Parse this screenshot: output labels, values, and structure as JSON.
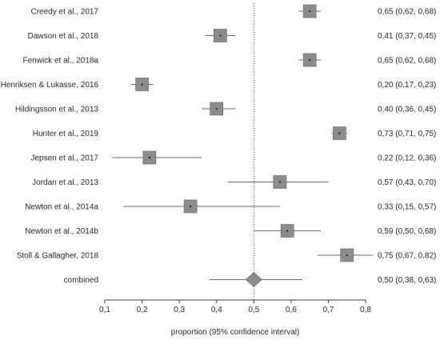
{
  "chart_data": {
    "type": "forest",
    "title": "",
    "xlabel": "proportion (95% confidence interval)",
    "ylabel": "",
    "xlim": [
      0.1,
      0.8
    ],
    "xticks": [
      "0,1",
      "0,2",
      "0,3",
      "0,4",
      "0,5",
      "0,6",
      "0,7",
      "0,8"
    ],
    "reference_line": 0.5,
    "studies": [
      {
        "label": "Creedy et al., 2017",
        "estimate": 0.65,
        "lower": 0.62,
        "upper": 0.68,
        "text": "0,65 (0,62, 0,68)"
      },
      {
        "label": "Dawson et al., 2018",
        "estimate": 0.41,
        "lower": 0.37,
        "upper": 0.45,
        "text": "0,41 (0,37, 0,45)"
      },
      {
        "label": "Fenwick et al., 2018a",
        "estimate": 0.65,
        "lower": 0.62,
        "upper": 0.68,
        "text": "0,65 (0,62, 0,68)"
      },
      {
        "label": "Henriksen & Lukasse, 2016",
        "estimate": 0.2,
        "lower": 0.17,
        "upper": 0.23,
        "text": "0,20 (0,17, 0,23)"
      },
      {
        "label": "Hildingsson et al., 2013",
        "estimate": 0.4,
        "lower": 0.36,
        "upper": 0.45,
        "text": "0,40 (0,36, 0,45)"
      },
      {
        "label": "Hunter et al., 2019",
        "estimate": 0.73,
        "lower": 0.71,
        "upper": 0.75,
        "text": "0,73 (0,71, 0,75)"
      },
      {
        "label": "Jepsen et al., 2017",
        "estimate": 0.22,
        "lower": 0.12,
        "upper": 0.36,
        "text": "0,22 (0,12, 0,36)"
      },
      {
        "label": "Jordan et al., 2013",
        "estimate": 0.57,
        "lower": 0.43,
        "upper": 0.7,
        "text": "0,57 (0,43, 0,70)"
      },
      {
        "label": "Newton et al., 2014a",
        "estimate": 0.33,
        "lower": 0.15,
        "upper": 0.57,
        "text": "0,33 (0,15, 0,57)"
      },
      {
        "label": "Newton et al., 2014b",
        "estimate": 0.59,
        "lower": 0.5,
        "upper": 0.68,
        "text": "0,59 (0,50, 0,68)"
      },
      {
        "label": "Stoll & Gallagher, 2018",
        "estimate": 0.75,
        "lower": 0.67,
        "upper": 0.82,
        "text": "0,75 (0,67, 0,82)"
      }
    ],
    "combined": {
      "label": "combined",
      "estimate": 0.5,
      "lower": 0.38,
      "upper": 0.63,
      "text": "0,50 (0,38, 0,63)"
    },
    "colors": {
      "marker": "#8c8c8c",
      "marker_edge": "#5a5a5a",
      "line": "#333333",
      "reference": "#555555"
    }
  }
}
